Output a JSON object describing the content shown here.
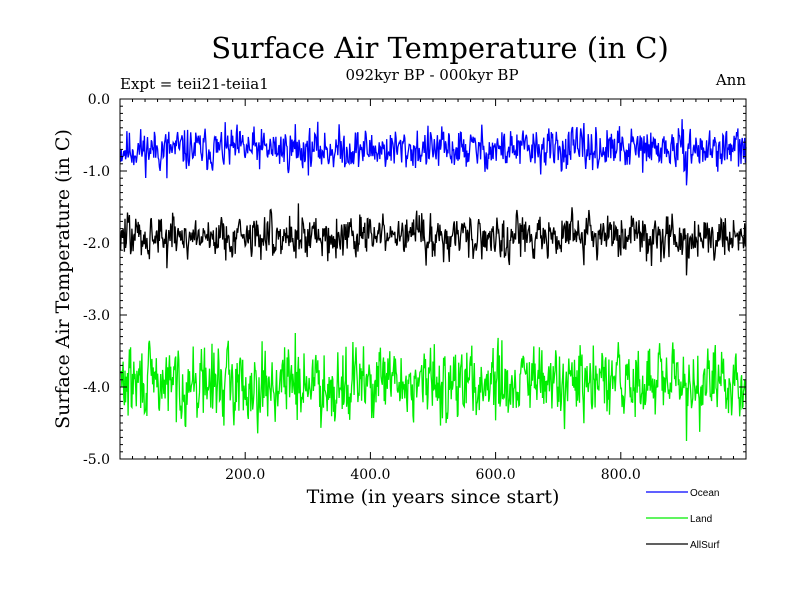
{
  "chart_data": {
    "type": "line",
    "title": "Surface Air Temperature (in C)",
    "subtitle": "092kyr BP - 000kyr BP",
    "left_label": "Expt = teii21-teiia1",
    "right_label": "Ann",
    "xlabel": "Time (in years since start)",
    "ylabel": "Surface Air Temperature (in C)",
    "xlim": [
      0,
      1000
    ],
    "ylim": [
      -5.0,
      0.0
    ],
    "x_ticks": [
      200,
      400,
      600,
      800
    ],
    "x_tick_labels": [
      "200.0",
      "400.0",
      "600.0",
      "800.0"
    ],
    "y_ticks": [
      0,
      -1,
      -2,
      -3,
      -4,
      -5
    ],
    "y_tick_labels": [
      "0.0",
      "-1.0",
      "-2.0",
      "-3.0",
      "-4.0",
      "-5.0"
    ],
    "grid": false,
    "legend_position": "bottom-right",
    "series": [
      {
        "name": "Ocean",
        "color": "#0000ff",
        "mean": -0.7,
        "amplitude": 0.17,
        "seed": 11,
        "extremes": [
          {
            "x": 75,
            "y": -1.1
          },
          {
            "x": 280,
            "y": -0.35
          },
          {
            "x": 905,
            "y": -1.2
          }
        ]
      },
      {
        "name": "Land",
        "color": "#00ee00",
        "mean": -3.95,
        "amplitude": 0.3,
        "seed": 29,
        "extremes": [
          {
            "x": 280,
            "y": -3.25
          },
          {
            "x": 610,
            "y": -3.35
          },
          {
            "x": 905,
            "y": -4.75
          }
        ]
      },
      {
        "name": "AllSurf",
        "color": "#000000",
        "mean": -1.9,
        "amplitude": 0.18,
        "seed": 47,
        "extremes": [
          {
            "x": 75,
            "y": -2.35
          },
          {
            "x": 285,
            "y": -1.45
          },
          {
            "x": 905,
            "y": -2.45
          }
        ]
      }
    ]
  }
}
